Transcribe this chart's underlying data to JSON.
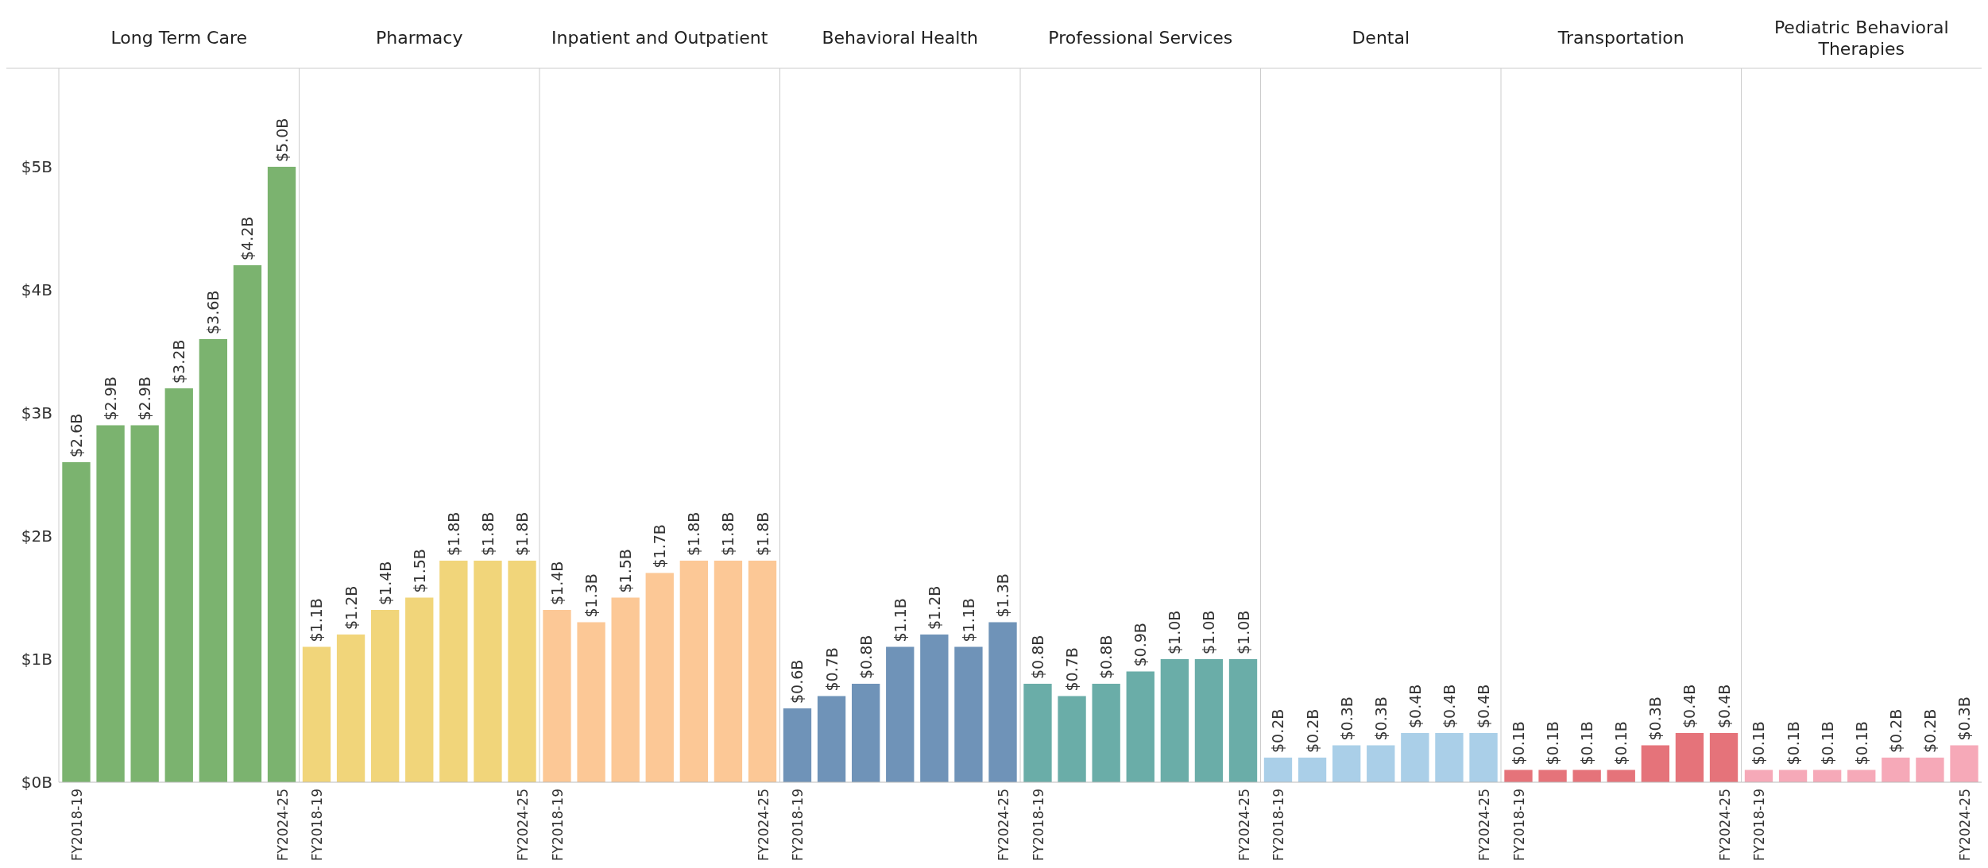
{
  "chart_data": [
    {
      "type": "bar",
      "title": "Long Term Care",
      "categories": [
        "FY2018-19",
        null,
        null,
        null,
        null,
        null,
        "FY2024-25"
      ],
      "values": [
        2.6,
        2.9,
        2.9,
        3.2,
        3.6,
        4.2,
        5.0
      ],
      "color": "#7bb36f",
      "value_labels": [
        "$2.6B",
        "$2.9B",
        "$2.9B",
        "$3.2B",
        "$3.6B",
        "$4.2B",
        "$5.0B"
      ],
      "ylim": [
        0,
        5.8
      ],
      "yticks": [
        {
          "value": 0,
          "label": "$0B"
        },
        {
          "value": 1,
          "label": "$1B"
        },
        {
          "value": 2,
          "label": "$2B"
        },
        {
          "value": 3,
          "label": "$3B"
        },
        {
          "value": 4,
          "label": "$4B"
        },
        {
          "value": 5,
          "label": "$5B"
        }
      ]
    },
    {
      "type": "bar",
      "title": "Pharmacy",
      "categories": [
        "FY2018-19",
        null,
        null,
        null,
        null,
        null,
        "FY2024-25"
      ],
      "values": [
        1.1,
        1.2,
        1.4,
        1.5,
        1.8,
        1.8,
        1.8
      ],
      "color": "#f1d57a",
      "value_labels": [
        "$1.1B",
        "$1.2B",
        "$1.4B",
        "$1.5B",
        "$1.8B",
        "$1.8B",
        "$1.8B"
      ],
      "ylim": [
        0,
        5.8
      ],
      "tick_labels": "x"
    },
    {
      "type": "bar",
      "title": "Inpatient and Outpatient",
      "categories": [
        "FY2018-19",
        null,
        null,
        null,
        null,
        null,
        "FY2024-25"
      ],
      "values": [
        1.4,
        1.3,
        1.5,
        1.7,
        1.8,
        1.8,
        1.8
      ],
      "color": "#fcc896",
      "value_labels": [
        "$1.4B",
        "$1.3B",
        "$1.5B",
        "$1.7B",
        "$1.8B",
        "$1.8B",
        "$1.8B"
      ],
      "ylim": [
        0,
        5.8
      ],
      "tick_labels": "x"
    },
    {
      "type": "bar",
      "title": "Behavioral Health",
      "categories": [
        "FY2018-19",
        null,
        null,
        null,
        null,
        null,
        "FY2024-25"
      ],
      "values": [
        0.6,
        0.7,
        0.8,
        1.1,
        1.2,
        1.1,
        1.3
      ],
      "color": "#6f93b8",
      "value_labels": [
        "$0.6B",
        "$0.7B",
        "$0.8B",
        "$1.1B",
        "$1.2B",
        "$1.1B",
        "$1.3B"
      ],
      "ylim": [
        0,
        5.8
      ],
      "tick_labels": "x"
    },
    {
      "type": "bar",
      "title": "Professional Services",
      "categories": [
        "FY2018-19",
        null,
        null,
        null,
        null,
        null,
        "FY2024-25"
      ],
      "values": [
        0.8,
        0.7,
        0.8,
        0.9,
        1.0,
        1.0,
        1.0
      ],
      "color": "#6aada8",
      "value_labels": [
        "$0.8B",
        "$0.7B",
        "$0.8B",
        "$0.9B",
        "$1.0B",
        "$1.0B",
        "$1.0B"
      ],
      "ylim": [
        0,
        5.8
      ],
      "tick_labels": "x"
    },
    {
      "type": "bar",
      "title": "Dental",
      "categories": [
        "FY2018-19",
        null,
        null,
        null,
        null,
        null,
        "FY2024-25"
      ],
      "values": [
        0.2,
        0.2,
        0.3,
        0.3,
        0.4,
        0.4,
        0.4
      ],
      "color": "#aacfe8",
      "value_labels": [
        "$0.2B",
        "$0.2B",
        "$0.3B",
        "$0.3B",
        "$0.4B",
        "$0.4B",
        "$0.4B"
      ],
      "ylim": [
        0,
        5.8
      ],
      "tick_labels": "x"
    },
    {
      "type": "bar",
      "title": "Transportation",
      "categories": [
        "FY2018-19",
        null,
        null,
        null,
        null,
        null,
        "FY2024-25"
      ],
      "values": [
        0.1,
        0.1,
        0.1,
        0.1,
        0.3,
        0.4,
        0.4
      ],
      "color": "#e5737a",
      "value_labels": [
        "$0.1B",
        "$0.1B",
        "$0.1B",
        "$0.1B",
        "$0.3B",
        "$0.4B",
        "$0.4B"
      ],
      "ylim": [
        0,
        5.8
      ],
      "tick_labels": "x"
    },
    {
      "type": "bar",
      "title": "Pediatric Behavioral Therapies",
      "categories": [
        "FY2018-19",
        null,
        null,
        null,
        null,
        null,
        "FY2024-25"
      ],
      "values": [
        0.1,
        0.1,
        0.1,
        0.1,
        0.2,
        0.2,
        0.3
      ],
      "color": "#f6a9b8",
      "value_labels": [
        "$0.1B",
        "$0.1B",
        "$0.1B",
        "$0.1B",
        "$0.2B",
        "$0.2B",
        "$0.3B"
      ],
      "ylim": [
        0,
        5.8
      ],
      "tick_labels": "x"
    }
  ]
}
